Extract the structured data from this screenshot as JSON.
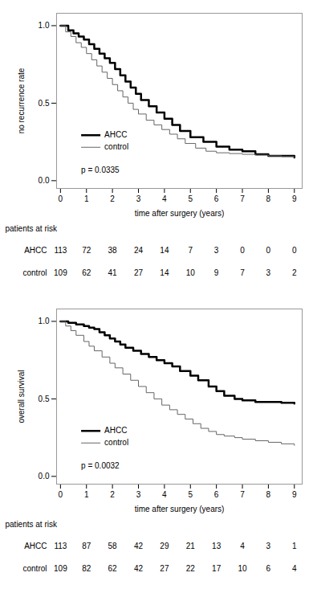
{
  "chart_data": [
    {
      "type": "step",
      "xlabel": "time after surgery (years)",
      "ylabel": "no recurrence rate",
      "xlim": [
        -0.15,
        9.3
      ],
      "ylim": [
        -0.05,
        1.08
      ],
      "xticks": [
        0,
        1,
        2,
        3,
        4,
        5,
        6,
        7,
        8,
        9
      ],
      "yticks": [
        {
          "value": 0.0,
          "label": "0.0"
        },
        0.5,
        {
          "value": 1.0,
          "label": "1.0"
        }
      ],
      "legend": "lower left",
      "series": [
        {
          "name": "AHCC",
          "color": "#000000",
          "x": [
            0,
            0.3,
            0.5,
            0.7,
            0.9,
            1.1,
            1.3,
            1.5,
            1.7,
            1.9,
            2.1,
            2.3,
            2.5,
            2.7,
            2.9,
            3.1,
            3.4,
            3.7,
            4.0,
            4.3,
            4.6,
            5.0,
            5.5,
            6.0,
            6.5,
            7.0,
            7.5,
            8.0,
            9.0
          ],
          "values": [
            1.0,
            0.97,
            0.95,
            0.93,
            0.91,
            0.88,
            0.85,
            0.82,
            0.79,
            0.76,
            0.72,
            0.68,
            0.64,
            0.6,
            0.56,
            0.52,
            0.48,
            0.44,
            0.4,
            0.36,
            0.32,
            0.28,
            0.25,
            0.22,
            0.2,
            0.19,
            0.17,
            0.16,
            0.15
          ]
        },
        {
          "name": "control",
          "color": "#666666",
          "x": [
            0,
            0.2,
            0.4,
            0.6,
            0.8,
            1.0,
            1.2,
            1.4,
            1.6,
            1.8,
            2.0,
            2.2,
            2.4,
            2.6,
            2.8,
            3.0,
            3.3,
            3.6,
            3.9,
            4.2,
            4.5,
            4.8,
            5.2,
            5.6,
            6.0,
            6.5,
            7.0,
            7.5,
            8.0,
            8.5,
            9.0
          ],
          "values": [
            1.0,
            0.96,
            0.93,
            0.89,
            0.86,
            0.82,
            0.78,
            0.74,
            0.7,
            0.66,
            0.62,
            0.58,
            0.54,
            0.5,
            0.46,
            0.43,
            0.39,
            0.36,
            0.33,
            0.3,
            0.27,
            0.24,
            0.21,
            0.19,
            0.18,
            0.175,
            0.17,
            0.165,
            0.16,
            0.155,
            0.15
          ]
        }
      ],
      "annotations": [
        {
          "text": "p = 0.0335"
        }
      ],
      "risk_table": {
        "title": "patients at risk",
        "x": [
          0,
          1,
          2,
          3,
          4,
          5,
          6,
          7,
          8,
          9
        ],
        "rows": [
          {
            "name": "AHCC",
            "values": [
              113,
              72,
              38,
              24,
              14,
              7,
              3,
              0,
              0,
              0
            ]
          },
          {
            "name": "control",
            "values": [
              109,
              62,
              41,
              27,
              14,
              10,
              9,
              7,
              3,
              2
            ]
          }
        ]
      }
    },
    {
      "type": "step",
      "xlabel": "time after surgery (years)",
      "ylabel": "overall survival",
      "xlim": [
        -0.15,
        9.3
      ],
      "ylim": [
        -0.05,
        1.08
      ],
      "xticks": [
        0,
        1,
        2,
        3,
        4,
        5,
        6,
        7,
        8,
        9
      ],
      "yticks": [
        {
          "value": 0.0,
          "label": "0.0"
        },
        0.5,
        {
          "value": 1.0,
          "label": "1.0"
        }
      ],
      "legend": "lower left",
      "series": [
        {
          "name": "AHCC",
          "color": "#000000",
          "x": [
            0,
            0.3,
            0.6,
            0.9,
            1.1,
            1.3,
            1.5,
            1.7,
            1.9,
            2.1,
            2.3,
            2.5,
            2.8,
            3.1,
            3.4,
            3.7,
            4.0,
            4.3,
            4.6,
            5.0,
            5.3,
            5.7,
            6.0,
            6.3,
            6.7,
            7.0,
            7.5,
            8.0,
            8.5,
            9.0
          ],
          "values": [
            1.0,
            0.99,
            0.98,
            0.97,
            0.96,
            0.95,
            0.93,
            0.91,
            0.89,
            0.87,
            0.85,
            0.83,
            0.81,
            0.79,
            0.77,
            0.75,
            0.73,
            0.71,
            0.68,
            0.65,
            0.62,
            0.58,
            0.55,
            0.52,
            0.5,
            0.49,
            0.48,
            0.48,
            0.475,
            0.47
          ]
        },
        {
          "name": "control",
          "color": "#666666",
          "x": [
            0,
            0.2,
            0.4,
            0.6,
            0.9,
            1.1,
            1.3,
            1.6,
            1.9,
            2.1,
            2.4,
            2.7,
            3.0,
            3.3,
            3.6,
            3.9,
            4.2,
            4.5,
            4.8,
            5.1,
            5.4,
            5.7,
            6.0,
            6.3,
            6.7,
            7.0,
            7.5,
            8.0,
            8.5,
            9.0
          ],
          "values": [
            1.0,
            0.97,
            0.94,
            0.91,
            0.87,
            0.84,
            0.81,
            0.77,
            0.73,
            0.7,
            0.66,
            0.62,
            0.58,
            0.54,
            0.5,
            0.46,
            0.43,
            0.4,
            0.37,
            0.34,
            0.31,
            0.29,
            0.27,
            0.26,
            0.25,
            0.24,
            0.23,
            0.22,
            0.21,
            0.2
          ]
        }
      ],
      "annotations": [
        {
          "text": "p = 0.0032"
        }
      ],
      "risk_table": {
        "title": "patients at risk",
        "x": [
          0,
          1,
          2,
          3,
          4,
          5,
          6,
          7,
          8,
          9
        ],
        "rows": [
          {
            "name": "AHCC",
            "values": [
              113,
              87,
              58,
              42,
              29,
              21,
              13,
              4,
              3,
              1
            ]
          },
          {
            "name": "control",
            "values": [
              109,
              82,
              62,
              42,
              27,
              22,
              17,
              10,
              6,
              4
            ]
          }
        ]
      }
    }
  ]
}
